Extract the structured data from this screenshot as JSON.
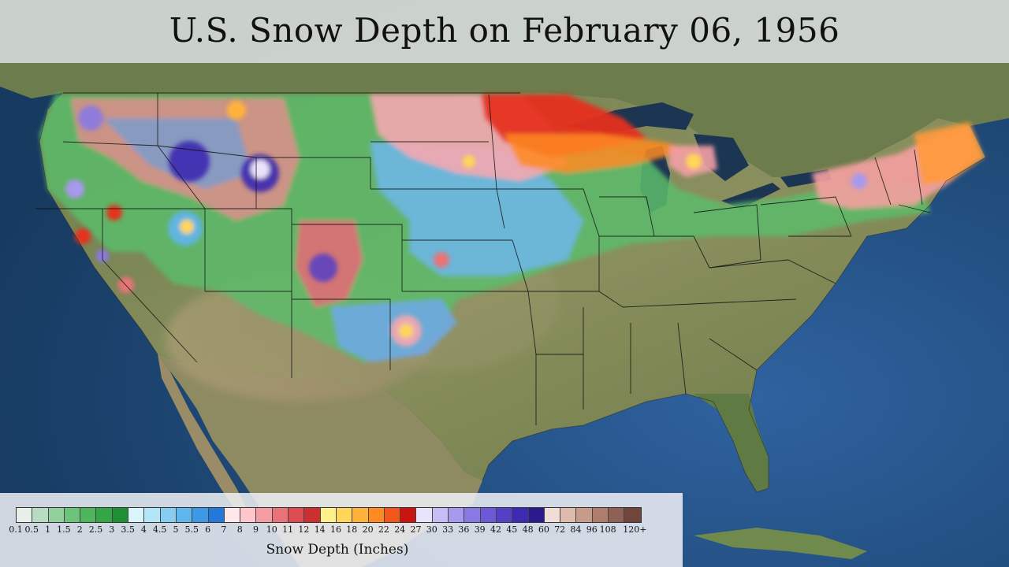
{
  "title": "U.S. Snow Depth on February 06, 1956",
  "legend": {
    "label": "Snow Depth (Inches)",
    "ticks": [
      "0.1",
      "0.5",
      "1",
      "1.5",
      "2",
      "2.5",
      "3",
      "3.5",
      "4",
      "4.5",
      "5",
      "5.5",
      "6",
      "7",
      "8",
      "9",
      "10",
      "11",
      "12",
      "14",
      "16",
      "18",
      "20",
      "22",
      "24",
      "27",
      "30",
      "33",
      "36",
      "39",
      "42",
      "45",
      "48",
      "60",
      "72",
      "84",
      "96",
      "108",
      "120+"
    ],
    "colors": [
      "#e8efe8",
      "#b7dcc2",
      "#8fd09c",
      "#6cc47a",
      "#4eb55e",
      "#35a648",
      "#1f8f36",
      "#d9f4fb",
      "#b2e6f6",
      "#87cdf2",
      "#5fb5ee",
      "#3d98e6",
      "#2378da",
      "#ffe8ec",
      "#ffc6cb",
      "#f59da2",
      "#e97378",
      "#dd4c50",
      "#c9302f",
      "#fff08a",
      "#ffd55a",
      "#ffb23a",
      "#ff8a22",
      "#f2561a",
      "#c9150f",
      "#e8e2fa",
      "#c8bcf5",
      "#a799ee",
      "#8a79e4",
      "#6d58d8",
      "#5340c6",
      "#3c2ab0",
      "#2a1a8e",
      "#f0ddd6",
      "#ddbbae",
      "#c79a8a",
      "#ad7e6e",
      "#8f6154",
      "#6e463a"
    ]
  },
  "basemap": {
    "ocean": "#1f4a78",
    "land": "#7d8a58",
    "border": "#111111"
  }
}
